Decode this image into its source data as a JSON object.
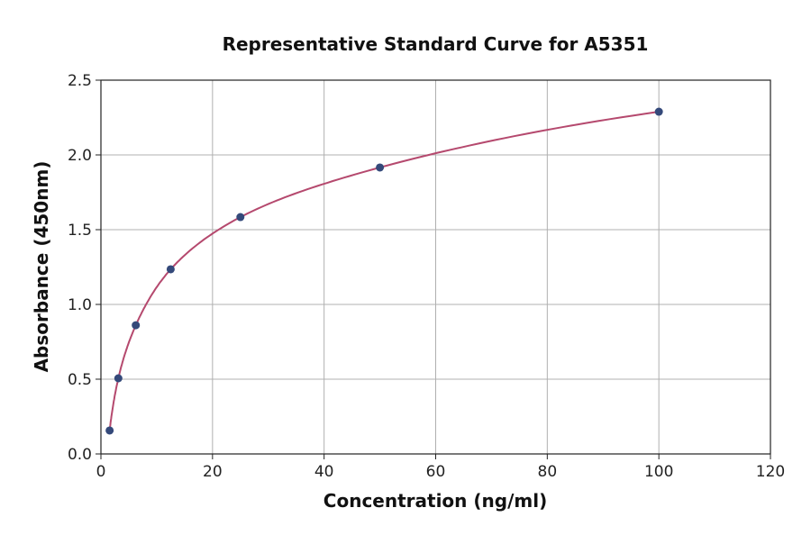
{
  "chart_data": {
    "type": "scatter",
    "title": "Representative Standard Curve for A5351",
    "xlabel": "Concentration (ng/ml)",
    "ylabel": "Absorbance (450nm)",
    "xlim": [
      0,
      120
    ],
    "ylim": [
      0,
      2.5
    ],
    "xticks": [
      "0",
      "20",
      "40",
      "60",
      "80",
      "100",
      "120"
    ],
    "yticks": [
      "0.0",
      "0.5",
      "1.0",
      "1.5",
      "2.0",
      "2.5"
    ],
    "grid": true,
    "points": [
      {
        "x": 1.56,
        "y": 0.157
      },
      {
        "x": 3.125,
        "y": 0.506
      },
      {
        "x": 6.25,
        "y": 0.861
      },
      {
        "x": 12.5,
        "y": 1.235
      },
      {
        "x": 25,
        "y": 1.584
      },
      {
        "x": 50,
        "y": 1.916
      },
      {
        "x": 100,
        "y": 2.289
      }
    ],
    "point_color": "#34497a",
    "curve_color": "#b5496e"
  }
}
